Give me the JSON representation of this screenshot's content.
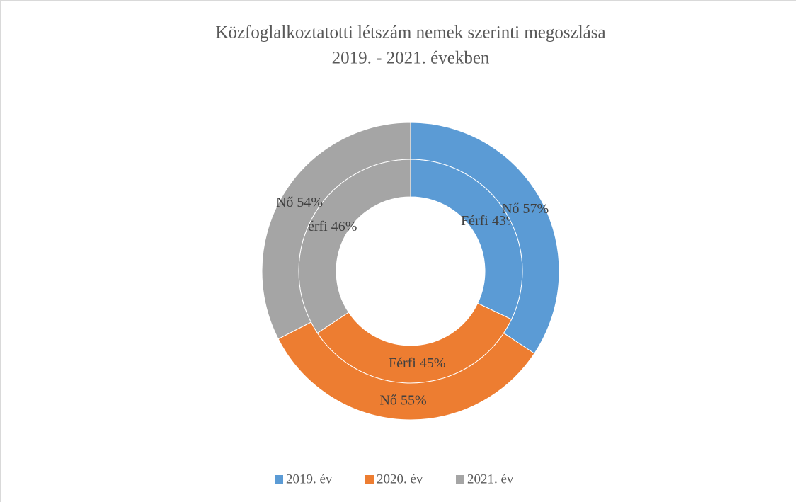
{
  "chart_data": {
    "type": "doughnut",
    "title": [
      "Közfoglalkoztatotti létszám nemek szerinti megoszlása",
      "2019. - 2021. években"
    ],
    "categories": [
      "2019. év",
      "2020. év",
      "2021. év"
    ],
    "colors": [
      "#5b9bd5",
      "#ed7d31",
      "#a5a5a5"
    ],
    "series": [
      {
        "name": "Férfi",
        "values": [
          43,
          45,
          46
        ],
        "value_labels": [
          "43%",
          "45%",
          "46%"
        ]
      },
      {
        "name": "Nő",
        "values": [
          57,
          55,
          54
        ],
        "value_labels": [
          "57%",
          "55%",
          "54%"
        ]
      }
    ],
    "legend": "bottom"
  }
}
